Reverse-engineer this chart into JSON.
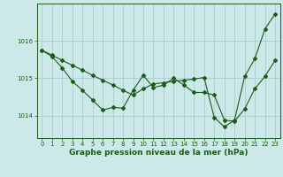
{
  "xlabel": "Graphe pression niveau de la mer (hPa)",
  "background_color": "#cce8e8",
  "grid_color": "#aacccc",
  "line_color": "#1a5c1a",
  "hours": [
    0,
    1,
    2,
    3,
    4,
    5,
    6,
    7,
    8,
    9,
    10,
    11,
    12,
    13,
    14,
    15,
    16,
    17,
    18,
    19,
    20,
    21,
    22,
    23
  ],
  "line1": [
    1015.75,
    1015.62,
    1015.48,
    1015.35,
    1015.22,
    1015.08,
    1014.95,
    1014.82,
    1014.68,
    1014.55,
    1014.72,
    1014.85,
    1014.88,
    1014.92,
    1014.95,
    1014.98,
    1015.02,
    1013.95,
    1013.7,
    1013.88,
    1015.05,
    1015.52,
    1016.32,
    1016.72
  ],
  "line2": [
    1015.75,
    1015.58,
    1015.28,
    1014.92,
    1014.68,
    1014.42,
    1014.15,
    1014.22,
    1014.2,
    1014.68,
    1015.08,
    1014.75,
    1014.82,
    1015.0,
    1014.82,
    1014.62,
    1014.62,
    1014.55,
    1013.88,
    1013.85,
    1014.18,
    1014.72,
    1015.05,
    1015.48
  ],
  "ylim": [
    1013.4,
    1017.0
  ],
  "yticks": [
    1014,
    1015,
    1016
  ],
  "xticks": [
    0,
    1,
    2,
    3,
    4,
    5,
    6,
    7,
    8,
    9,
    10,
    11,
    12,
    13,
    14,
    15,
    16,
    17,
    18,
    19,
    20,
    21,
    22,
    23
  ],
  "tick_fontsize": 5.0,
  "xlabel_fontsize": 6.5,
  "marker": "D",
  "marker_size": 2.0,
  "line_width": 0.8
}
